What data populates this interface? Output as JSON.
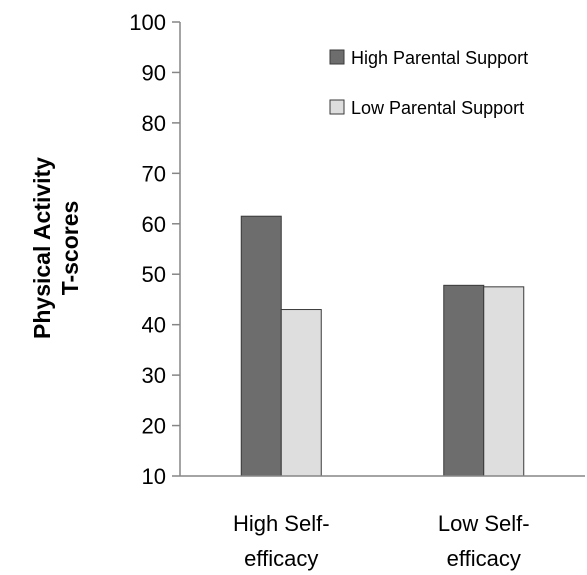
{
  "chart_data": {
    "type": "bar",
    "title": "",
    "xlabel": "",
    "ylabel_lines": [
      "Physical Activity",
      "T-scores"
    ],
    "ylim": [
      10,
      100
    ],
    "yticks": [
      10,
      20,
      30,
      40,
      50,
      60,
      70,
      80,
      90,
      100
    ],
    "categories": [
      [
        "High Self-",
        "efficacy"
      ],
      [
        "Low Self-",
        "efficacy"
      ]
    ],
    "series": [
      {
        "name": "High Parental Support",
        "color": "#6d6d6d",
        "values": [
          61.5,
          47.8
        ]
      },
      {
        "name": "Low Parental Support",
        "color": "#dedede",
        "values": [
          43.0,
          47.5
        ]
      }
    ],
    "grid": false,
    "legend_position": "top-right"
  }
}
